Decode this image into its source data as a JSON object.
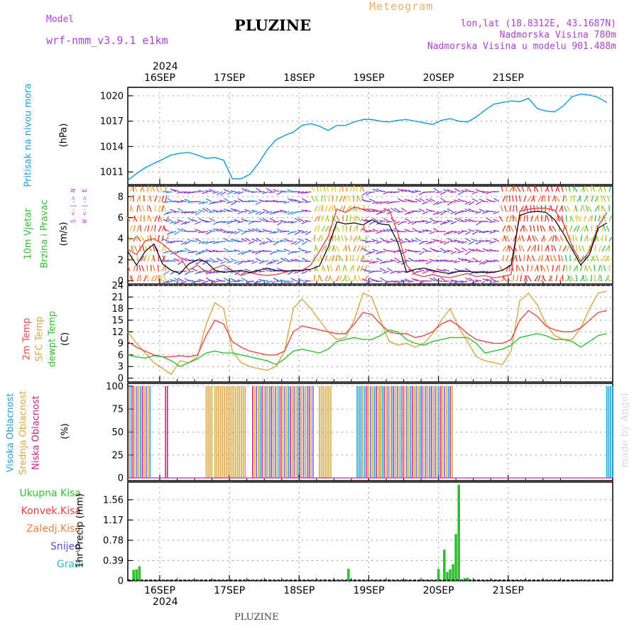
{
  "header": {
    "model_label": "Model",
    "model_name": "wrf-nmm_v3.9.1  e1km",
    "title": "PLUZINE",
    "meteogram": "Meteogram",
    "lonlat": "lon,lat (18.8312E, 43.1687N)",
    "altitude": "Nadmorska Visina 780m",
    "model_altitude": "Nadmorska Visina u modelu 901.488m",
    "year_top": "2024",
    "year_bottom": "2024",
    "footer": "PLUZINE",
    "credit": "made by Angel"
  },
  "colors": {
    "pressure": "#1aa0e0",
    "wind_speed": "#000000",
    "gust": "#e84040",
    "t2m": "#e84848",
    "sfc": "#d8a840",
    "dewpt": "#30c030",
    "high_cloud": "#1aa0e0",
    "mid_cloud": "#d8a840",
    "low_cloud": "#d02080",
    "total_precip": "#30c030",
    "convective": "#e84040",
    "frozen": "#f08040",
    "snow": "#5050e0",
    "graupel": "#30c0c0"
  },
  "labels": {
    "pressure_title": "Pritisak na nivou mora",
    "pressure_unit": "(hPa)",
    "wind_title_1": "10m Vjetar",
    "wind_title_2": "Brzina i Pravac",
    "wind_unit": "(m/s)",
    "compass": "W <-|-> E",
    "compass_ns": "S <-|-> N",
    "temp_t2m": "2m Temp",
    "temp_sfc": "SFC Temp",
    "temp_dew": "dewpt Temp",
    "temp_unit": "(C)",
    "cloud_high": "Visoka Oblacnost",
    "cloud_mid": "Srednja Oblacnost",
    "cloud_low": "Niska Oblacnost",
    "cloud_unit": "(%)",
    "precip_total": "Ukupna Kisa",
    "precip_conv": "Konvek.Kisa",
    "precip_frozen": "Zaledj.Kisa",
    "precip_snow": "Snijeg",
    "precip_graupel": "Grad",
    "precip_unit": "1hr Precip (mm)"
  },
  "chart_data": [
    {
      "type": "line",
      "name": "pressure",
      "x_dates": [
        "16SEP",
        "17SEP",
        "18SEP",
        "19SEP",
        "20SEP",
        "21SEP"
      ],
      "x_hours": [
        0,
        3,
        6,
        9,
        12,
        15,
        18,
        21,
        24,
        27,
        30,
        33,
        36,
        39,
        42,
        45,
        48,
        51,
        54,
        57,
        60,
        63,
        66,
        69,
        72,
        75,
        78,
        81,
        84,
        87,
        90,
        93,
        96,
        99,
        102,
        105,
        108,
        111,
        114,
        117,
        120,
        123,
        126,
        129,
        132,
        135,
        138,
        141,
        144,
        147,
        150,
        153,
        156,
        159,
        162,
        165
      ],
      "series": [
        {
          "values": [
            1010.0,
            1010.8,
            1011.5,
            1012.0,
            1012.5,
            1013.0,
            1013.2,
            1013.3,
            1013.0,
            1012.6,
            1012.7,
            1012.4,
            1010.2,
            1010.2,
            1010.7,
            1012.0,
            1013.6,
            1014.8,
            1015.3,
            1015.7,
            1016.5,
            1016.7,
            1016.4,
            1015.9,
            1016.5,
            1016.5,
            1016.9,
            1017.2,
            1017.2,
            1017.0,
            1016.9,
            1017.1,
            1017.2,
            1017.0,
            1016.8,
            1016.6,
            1017.1,
            1017.3,
            1017.0,
            1016.9,
            1017.5,
            1018.3,
            1019.0,
            1019.2,
            1019.4,
            1019.3,
            1019.7,
            1018.5,
            1018.2,
            1018.1,
            1018.8,
            1019.9,
            1020.2,
            1020.1,
            1019.8,
            1019.2
          ]
        }
      ],
      "yticks": [
        1011,
        1014,
        1017,
        1020
      ],
      "ylim": [
        1009.5,
        1021.0
      ]
    },
    {
      "type": "line",
      "name": "wind",
      "x_hours": [
        0,
        3,
        6,
        9,
        12,
        15,
        18,
        21,
        24,
        27,
        30,
        33,
        36,
        39,
        42,
        45,
        48,
        51,
        54,
        57,
        60,
        63,
        66,
        69,
        72,
        75,
        78,
        81,
        84,
        87,
        90,
        93,
        96,
        99,
        102,
        105,
        108,
        111,
        114,
        117,
        120,
        123,
        126,
        129,
        132,
        135,
        138,
        141,
        144,
        147,
        150,
        153,
        156,
        159,
        162,
        165
      ],
      "series": [
        {
          "values": [
            2.8,
            1.5,
            2.8,
            3.5,
            1.6,
            1.0,
            0.7,
            1.6,
            2.0,
            1.8,
            1.0,
            0.8,
            0.9,
            1.0,
            0.8,
            1.0,
            1.2,
            1.0,
            0.9,
            1.0,
            1.0,
            1.1,
            1.4,
            3.2,
            5.6,
            5.4,
            5.5,
            5.3,
            5.8,
            5.4,
            5.3,
            3.6,
            0.8,
            1.1,
            1.2,
            1.0,
            0.8,
            0.7,
            0.9,
            0.9,
            0.8,
            0.8,
            0.8,
            1.0,
            1.5,
            6.2,
            6.5,
            6.6,
            6.5,
            5.8,
            4.5,
            3.0,
            1.5,
            2.5,
            5.0,
            5.5
          ]
        },
        {
          "values": [
            3.0,
            2.5,
            3.8,
            4.0,
            3.5,
            2.8,
            2.2,
            1.0,
            1.5,
            0.8,
            1.2,
            1.5,
            1.0,
            0.5,
            0.8,
            0.6,
            0.5,
            0.6,
            0.8,
            1.0,
            1.0,
            1.5,
            2.8,
            4.2,
            6.8,
            6.5,
            7.0,
            6.8,
            6.8,
            6.6,
            6.8,
            4.5,
            1.5,
            0.6,
            0.4,
            0.6,
            0.4,
            0.3,
            0.5,
            0.7,
            0.4,
            0.5,
            0.3,
            0.4,
            0.6,
            6.6,
            6.8,
            6.9,
            6.9,
            6.7,
            5.5,
            3.3,
            1.8,
            2.8,
            5.2,
            6.5
          ]
        }
      ],
      "yticks": [
        0,
        2,
        4,
        6,
        8
      ],
      "ylim": [
        -0.3,
        9.0
      ]
    },
    {
      "type": "line",
      "name": "temperature",
      "x_hours": [
        0,
        3,
        6,
        9,
        12,
        15,
        18,
        21,
        24,
        27,
        30,
        33,
        36,
        39,
        42,
        45,
        48,
        51,
        54,
        57,
        60,
        63,
        66,
        69,
        72,
        75,
        78,
        81,
        84,
        87,
        90,
        93,
        96,
        99,
        102,
        105,
        108,
        111,
        114,
        117,
        120,
        123,
        126,
        129,
        132,
        135,
        138,
        141,
        144,
        147,
        150,
        153,
        156,
        159,
        162,
        165
      ],
      "series": [
        {
          "values": [
            9.5,
            8.0,
            7.0,
            6.0,
            5.5,
            5.5,
            5.8,
            5.5,
            6.0,
            11.0,
            15.0,
            14.0,
            9.5,
            8.0,
            7.0,
            6.5,
            6.0,
            6.0,
            7.0,
            12.0,
            13.5,
            13.0,
            12.5,
            12.0,
            11.5,
            11.5,
            14.0,
            17.0,
            16.5,
            14.0,
            12.0,
            11.5,
            11.5,
            10.5,
            11.0,
            12.0,
            14.0,
            15.0,
            13.5,
            11.5,
            10.0,
            9.5,
            9.0,
            9.0,
            10.0,
            15.0,
            17.5,
            16.0,
            13.5,
            12.5,
            12.0,
            12.0,
            13.0,
            15.0,
            17.0,
            17.5
          ]
        },
        {
          "values": [
            12.0,
            9.0,
            6.5,
            4.0,
            2.5,
            1.0,
            4.5,
            4.0,
            5.5,
            14.0,
            19.5,
            18.0,
            7.0,
            4.0,
            3.0,
            2.5,
            2.0,
            3.0,
            7.0,
            18.0,
            20.5,
            18.0,
            15.0,
            12.0,
            10.0,
            10.5,
            15.0,
            22.0,
            21.0,
            15.0,
            9.5,
            8.5,
            9.0,
            8.0,
            9.0,
            11.5,
            15.0,
            18.0,
            13.0,
            9.5,
            5.5,
            4.5,
            4.0,
            3.5,
            7.0,
            20.0,
            22.0,
            19.0,
            14.0,
            11.0,
            10.0,
            10.0,
            13.0,
            18.0,
            22.0,
            22.5
          ]
        },
        {
          "values": [
            6.0,
            5.5,
            5.2,
            5.8,
            5.5,
            4.5,
            3.0,
            4.0,
            5.0,
            6.5,
            7.0,
            6.5,
            6.5,
            6.0,
            5.5,
            5.0,
            4.5,
            3.5,
            5.0,
            7.0,
            7.5,
            7.0,
            6.5,
            7.5,
            9.5,
            10.0,
            10.5,
            10.0,
            10.0,
            11.0,
            12.5,
            12.0,
            10.0,
            9.0,
            8.5,
            9.5,
            10.0,
            10.5,
            10.5,
            10.5,
            9.0,
            6.5,
            7.0,
            7.5,
            8.5,
            10.5,
            11.0,
            11.5,
            11.0,
            10.0,
            10.0,
            9.5,
            8.0,
            9.5,
            11.0,
            11.5
          ]
        }
      ],
      "yticks": [
        0,
        3,
        6,
        9,
        12,
        15,
        18,
        21,
        24
      ],
      "ylim": [
        -1.0,
        24.0
      ]
    },
    {
      "type": "bar",
      "name": "cloud",
      "yticks": [
        0,
        25,
        50,
        75,
        100
      ],
      "ylim": [
        -3,
        103
      ],
      "note": "dense vertical cloud-fraction bars over the forecast period"
    },
    {
      "type": "bar",
      "name": "precip",
      "x_hours": [
        2,
        3,
        4,
        67,
        68,
        76,
        107,
        109,
        110,
        111,
        112,
        113,
        114,
        116,
        117
      ],
      "series": [
        {
          "values": [
            0.21,
            0.22,
            0.28,
            0.02,
            0.03,
            0.23,
            0.23,
            0.6,
            0.17,
            0.22,
            0.32,
            0.9,
            1.85,
            0.05,
            0.06
          ]
        }
      ],
      "yticks": [
        0,
        0.39,
        0.78,
        1.17,
        1.56
      ],
      "ylim": [
        0,
        1.9
      ]
    }
  ]
}
